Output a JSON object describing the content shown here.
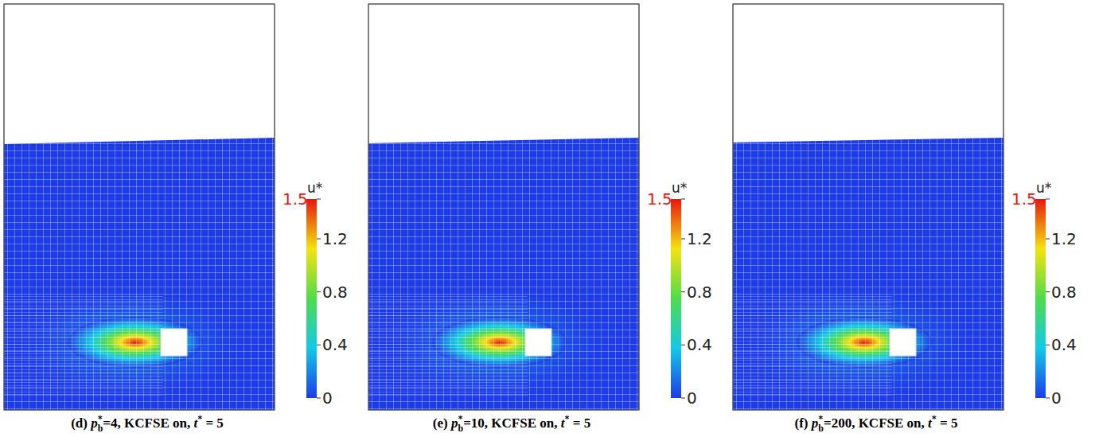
{
  "chart_data": [
    {
      "type": "field",
      "caption": {
        "prefix": "(d) ",
        "symbol": "p",
        "sup": "*",
        "sub": "b",
        "mid": "=4, KCFSE on, ",
        "t_symbol": "t",
        "t_sup": "*",
        "suffix": " = 5"
      },
      "colorbar": {
        "label": "u*",
        "range": [
          0,
          1.5
        ],
        "ticks": [
          0,
          0.4,
          0.8,
          1.2,
          1.5
        ],
        "colors": [
          "#1e3ce6",
          "#13c9e8",
          "#4fdc4b",
          "#f4e30f",
          "#e8160f"
        ]
      }
    },
    {
      "type": "field",
      "caption": {
        "prefix": "(e) ",
        "symbol": "p",
        "sup": "*",
        "sub": "b",
        "mid": "=10, KCFSE on, ",
        "t_symbol": "t",
        "t_sup": "*",
        "suffix": " = 5"
      },
      "colorbar": {
        "label": "u*",
        "range": [
          0,
          1.5
        ],
        "ticks": [
          0,
          0.4,
          0.8,
          1.2,
          1.5
        ],
        "colors": [
          "#1e3ce6",
          "#13c9e8",
          "#4fdc4b",
          "#f4e30f",
          "#e8160f"
        ]
      }
    },
    {
      "type": "field",
      "caption": {
        "prefix": "(f) ",
        "symbol": "p",
        "sup": "*",
        "sub": "b",
        "mid": "=200, KCFSE on, ",
        "t_symbol": "t",
        "t_sup": "*",
        "suffix": " = 5"
      },
      "colorbar": {
        "label": "u*",
        "range": [
          0,
          1.5
        ],
        "ticks": [
          0,
          0.4,
          0.8,
          1.2,
          1.5
        ],
        "colors": [
          "#1e3ce6",
          "#13c9e8",
          "#4fdc4b",
          "#f4e30f",
          "#e8160f"
        ]
      }
    }
  ]
}
